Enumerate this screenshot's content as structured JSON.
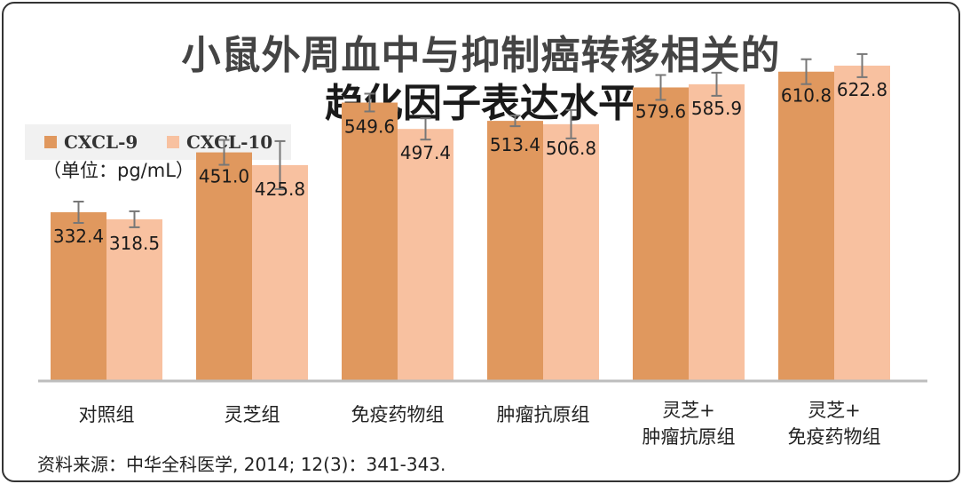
{
  "chart_data": {
    "type": "bar",
    "title_line1": "小鼠外周血中与抑制癌转移相关的",
    "title_line2": "趋化因子表达水平",
    "unit_label": "（单位：pg/mL）",
    "categories": [
      [
        "对照组"
      ],
      [
        "灵芝组"
      ],
      [
        "免疫药物组"
      ],
      [
        "肿瘤抗原组"
      ],
      [
        "灵芝+",
        "肿瘤抗原组"
      ],
      [
        "灵芝+",
        "免疫药物组"
      ]
    ],
    "series": [
      {
        "name": "CXCL-9",
        "color": "#e0985e",
        "values": [
          332.4,
          451.0,
          549.6,
          513.4,
          579.6,
          610.8
        ],
        "labels": [
          "332.4",
          "451.0",
          "549.6",
          "513.4",
          "579.6",
          "610.8"
        ],
        "errors": [
          12,
          14,
          10,
          6,
          14,
          14
        ]
      },
      {
        "name": "CXCL-10",
        "color": "#f8c1a0",
        "values": [
          318.5,
          425.8,
          497.4,
          506.8,
          585.9,
          622.8
        ],
        "labels": [
          "318.5",
          "425.8",
          "497.4",
          "506.8",
          "585.9",
          "622.8"
        ],
        "errors": [
          9,
          27,
          12,
          16,
          13,
          13
        ]
      }
    ],
    "ylim": [
      0,
      700
    ],
    "grid": false,
    "legend_position": "top-left",
    "source": "资料来源：中华全科医学, 2014; 12(3)：341-343."
  }
}
